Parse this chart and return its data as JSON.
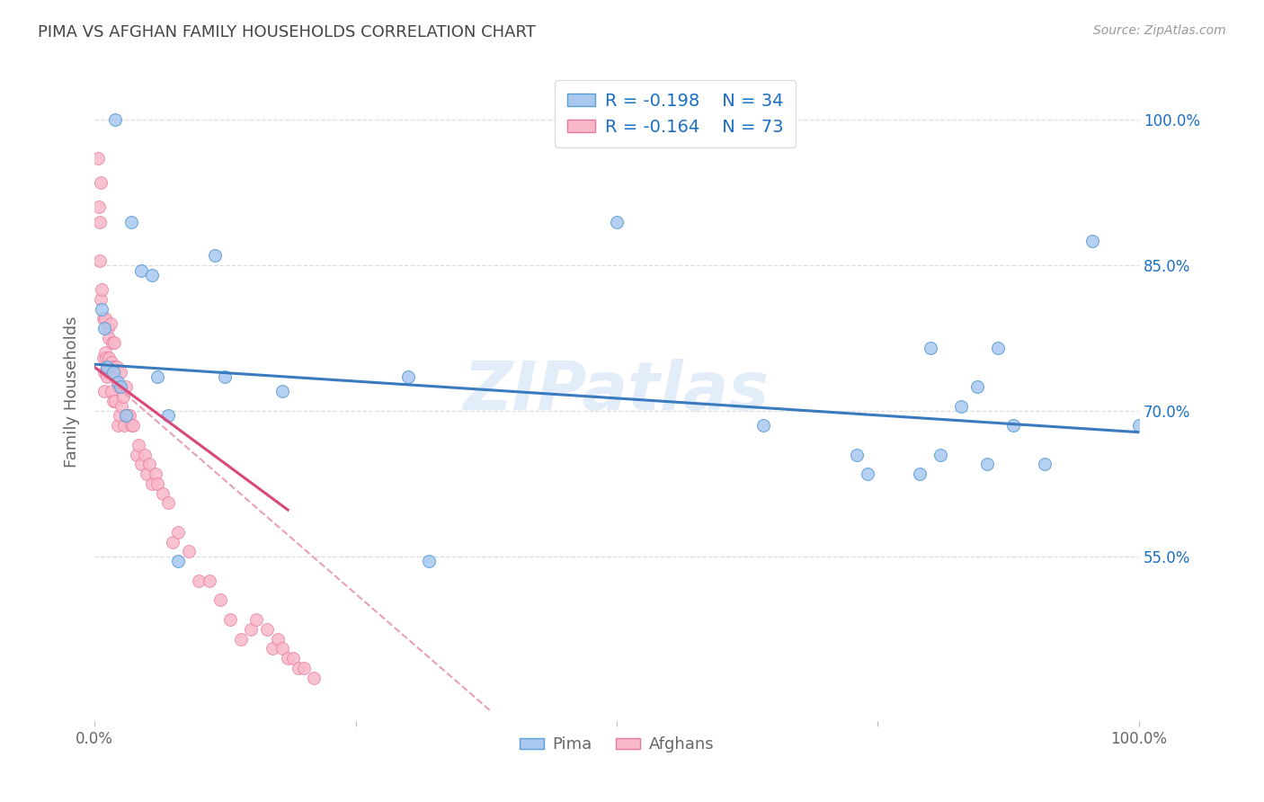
{
  "title": "PIMA VS AFGHAN FAMILY HOUSEHOLDS CORRELATION CHART",
  "source": "Source: ZipAtlas.com",
  "ylabel": "Family Households",
  "watermark": "ZIPatlas",
  "xlim": [
    0.0,
    1.0
  ],
  "ylim": [
    0.38,
    1.06
  ],
  "yticks": [
    0.55,
    0.7,
    0.85,
    1.0
  ],
  "ytick_labels": [
    "55.0%",
    "70.0%",
    "85.0%",
    "100.0%"
  ],
  "legend_r_pima": "R = -0.198",
  "legend_n_pima": "N = 34",
  "legend_r_afghan": "R = -0.164",
  "legend_n_afghan": "N = 73",
  "pima_color": "#a8c8f0",
  "afghan_color": "#f8b8c8",
  "pima_edge_color": "#5a9fd4",
  "afghan_edge_color": "#e878a0",
  "pima_line_color": "#3a7abf",
  "afghan_line_color": "#d84878",
  "dashed_line_color": "#e8a0b8",
  "background_color": "#ffffff",
  "grid_color": "#dddddd",
  "title_color": "#444444",
  "axis_label_color": "#666666",
  "legend_color": "#1a6fc4",
  "right_ytick_color": "#1a6fc4",
  "pima_x": [
    0.02,
    0.035,
    0.045,
    0.055,
    0.007,
    0.009,
    0.012,
    0.018,
    0.022,
    0.025,
    0.03,
    0.06,
    0.07,
    0.08,
    0.115,
    0.125,
    0.18,
    0.3,
    0.32,
    0.5,
    0.64,
    0.73,
    0.74,
    0.79,
    0.8,
    0.81,
    0.83,
    0.845,
    0.855,
    0.865,
    0.88,
    0.91,
    0.955,
    1.0
  ],
  "pima_y": [
    1.0,
    0.895,
    0.845,
    0.84,
    0.805,
    0.785,
    0.745,
    0.74,
    0.73,
    0.725,
    0.695,
    0.735,
    0.695,
    0.545,
    0.86,
    0.735,
    0.72,
    0.735,
    0.545,
    0.895,
    0.685,
    0.655,
    0.635,
    0.635,
    0.765,
    0.655,
    0.705,
    0.725,
    0.645,
    0.765,
    0.685,
    0.645,
    0.875,
    0.685
  ],
  "afghan_x": [
    0.003,
    0.004,
    0.005,
    0.005,
    0.006,
    0.006,
    0.007,
    0.008,
    0.008,
    0.009,
    0.009,
    0.01,
    0.01,
    0.011,
    0.011,
    0.012,
    0.013,
    0.014,
    0.014,
    0.015,
    0.015,
    0.016,
    0.016,
    0.017,
    0.018,
    0.018,
    0.019,
    0.02,
    0.02,
    0.021,
    0.022,
    0.023,
    0.024,
    0.025,
    0.026,
    0.027,
    0.028,
    0.03,
    0.03,
    0.032,
    0.033,
    0.035,
    0.037,
    0.04,
    0.042,
    0.045,
    0.048,
    0.05,
    0.052,
    0.055,
    0.058,
    0.06,
    0.065,
    0.07,
    0.075,
    0.08,
    0.09,
    0.1,
    0.11,
    0.12,
    0.13,
    0.14,
    0.15,
    0.155,
    0.165,
    0.17,
    0.175,
    0.18,
    0.185,
    0.19,
    0.195,
    0.2,
    0.21
  ],
  "afghan_y": [
    0.96,
    0.91,
    0.895,
    0.855,
    0.815,
    0.935,
    0.825,
    0.795,
    0.755,
    0.74,
    0.72,
    0.795,
    0.76,
    0.755,
    0.74,
    0.735,
    0.785,
    0.755,
    0.775,
    0.79,
    0.745,
    0.75,
    0.72,
    0.77,
    0.745,
    0.71,
    0.77,
    0.735,
    0.71,
    0.745,
    0.685,
    0.725,
    0.695,
    0.74,
    0.705,
    0.715,
    0.685,
    0.725,
    0.695,
    0.695,
    0.695,
    0.685,
    0.685,
    0.655,
    0.665,
    0.645,
    0.655,
    0.635,
    0.645,
    0.625,
    0.635,
    0.625,
    0.615,
    0.605,
    0.565,
    0.575,
    0.555,
    0.525,
    0.525,
    0.505,
    0.485,
    0.465,
    0.475,
    0.485,
    0.475,
    0.455,
    0.465,
    0.455,
    0.445,
    0.445,
    0.435,
    0.435,
    0.425
  ],
  "pima_trend_x": [
    0.0,
    1.0
  ],
  "pima_trend_y": [
    0.748,
    0.678
  ],
  "afghan_trend_x": [
    0.0,
    0.185
  ],
  "afghan_trend_y": [
    0.745,
    0.598
  ],
  "dashed_trend_x": [
    0.0,
    0.38
  ],
  "dashed_trend_y": [
    0.745,
    0.39
  ],
  "marker_size": 100
}
